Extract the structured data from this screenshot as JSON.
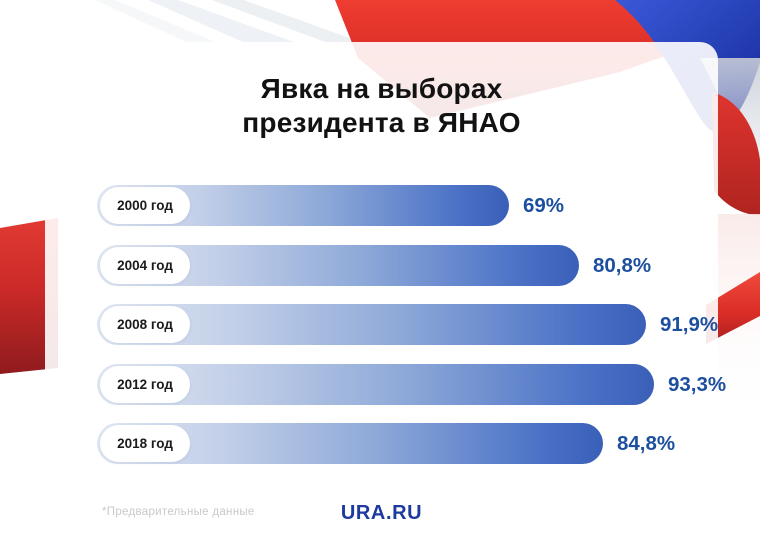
{
  "title": {
    "line1": "Явка на выборах",
    "line2": "президента в ЯНАО"
  },
  "chart_data": {
    "type": "bar",
    "orientation": "horizontal",
    "title": "Явка на выборах президента в ЯНАО",
    "categories": [
      "2000 год",
      "2004 год",
      "2008 год",
      "2012 год",
      "2018 год"
    ],
    "values": [
      69,
      80.8,
      91.9,
      93.3,
      84.8
    ],
    "value_labels": [
      "69%",
      "80,8%",
      "91,9%",
      "93,3%",
      "84,8%"
    ],
    "unit": "%",
    "xlim": [
      0,
      100
    ],
    "grid": false,
    "legend": false,
    "colors": {
      "bar_gradient_start": "#e1e7f3",
      "bar_gradient_end": "#3a5fb8",
      "value_label_blue": "#1c4f9e",
      "flag_red": "#d92c26",
      "flag_blue": "#2742b8",
      "title_black": "#121212"
    }
  },
  "footer": {
    "note": "*Предварительные данные",
    "brand": "URA.RU"
  }
}
